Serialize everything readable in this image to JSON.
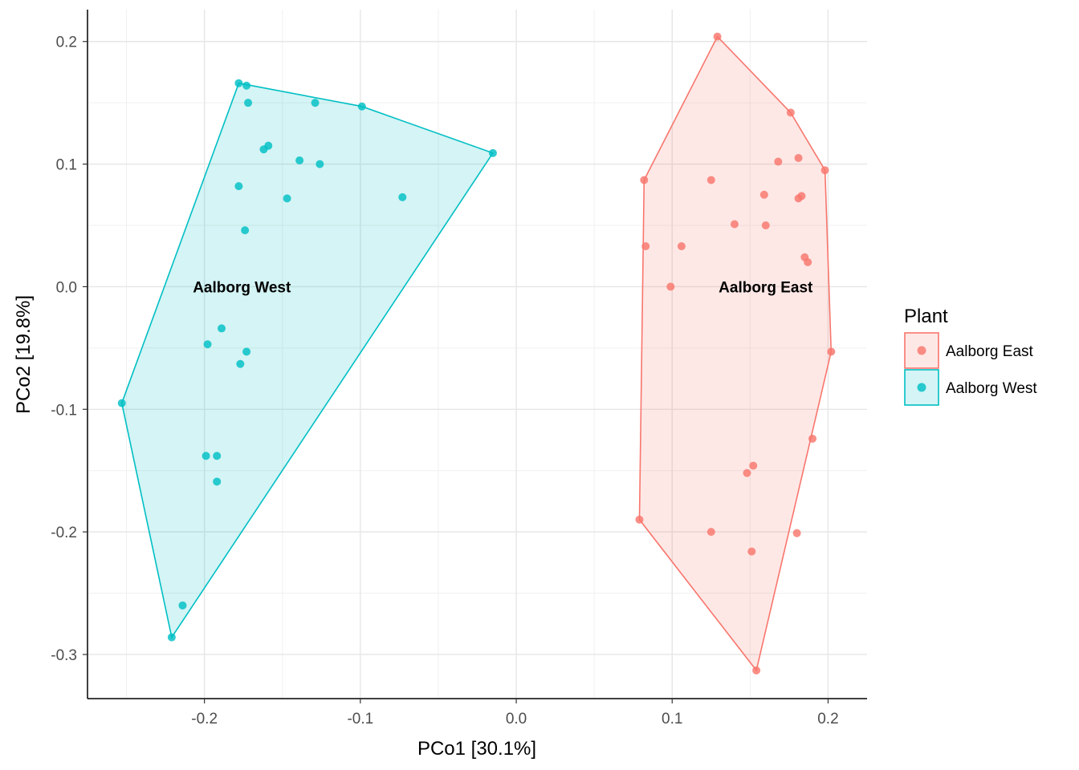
{
  "chart_data": {
    "type": "scatter",
    "xlabel": "PCo1 [30.1%]",
    "ylabel": "PCo2 [19.8%]",
    "xlim": [
      -0.275,
      0.225
    ],
    "ylim": [
      -0.336,
      0.226
    ],
    "x_ticks": [
      -0.2,
      -0.1,
      0.0,
      0.1,
      0.2
    ],
    "x_tick_labels": [
      "-0.2",
      "-0.1",
      "0.0",
      "0.1",
      "0.2"
    ],
    "y_ticks": [
      0.2,
      0.1,
      0.0,
      -0.1,
      -0.2,
      -0.3
    ],
    "y_tick_labels": [
      "0.2",
      "0.1",
      "0.0",
      "-0.1",
      "-0.2",
      "-0.3"
    ],
    "grid": true,
    "hulls": true,
    "legend": {
      "title": "Plant",
      "position": "right",
      "entries": [
        "Aalborg East",
        "Aalborg West"
      ]
    },
    "series": [
      {
        "name": "Aalborg East",
        "color": "#F8766D",
        "label_position": [
          0.16,
          0.0
        ],
        "points": [
          [
            0.129,
            0.204
          ],
          [
            0.176,
            0.142
          ],
          [
            0.168,
            0.102
          ],
          [
            0.181,
            0.105
          ],
          [
            0.198,
            0.095
          ],
          [
            0.082,
            0.087
          ],
          [
            0.125,
            0.087
          ],
          [
            0.159,
            0.075
          ],
          [
            0.183,
            0.074
          ],
          [
            0.181,
            0.072
          ],
          [
            0.14,
            0.051
          ],
          [
            0.16,
            0.05
          ],
          [
            0.083,
            0.033
          ],
          [
            0.106,
            0.033
          ],
          [
            0.185,
            0.024
          ],
          [
            0.187,
            0.02
          ],
          [
            0.099,
            0.0
          ],
          [
            0.202,
            -0.053
          ],
          [
            0.19,
            -0.124
          ],
          [
            0.152,
            -0.146
          ],
          [
            0.148,
            -0.152
          ],
          [
            0.079,
            -0.19
          ],
          [
            0.125,
            -0.2
          ],
          [
            0.18,
            -0.201
          ],
          [
            0.151,
            -0.216
          ],
          [
            0.154,
            -0.313
          ]
        ],
        "hull": [
          [
            0.129,
            0.204
          ],
          [
            0.176,
            0.142
          ],
          [
            0.198,
            0.095
          ],
          [
            0.202,
            -0.053
          ],
          [
            0.154,
            -0.313
          ],
          [
            0.079,
            -0.19
          ],
          [
            0.082,
            0.087
          ]
        ]
      },
      {
        "name": "Aalborg West",
        "color": "#00BFC4",
        "label_position": [
          -0.176,
          0.0
        ],
        "points": [
          [
            -0.178,
            0.166
          ],
          [
            -0.173,
            0.164
          ],
          [
            -0.172,
            0.15
          ],
          [
            -0.129,
            0.15
          ],
          [
            -0.099,
            0.147
          ],
          [
            -0.159,
            0.115
          ],
          [
            -0.162,
            0.112
          ],
          [
            -0.015,
            0.109
          ],
          [
            -0.139,
            0.103
          ],
          [
            -0.126,
            0.1
          ],
          [
            -0.178,
            0.082
          ],
          [
            -0.147,
            0.072
          ],
          [
            -0.073,
            0.073
          ],
          [
            -0.174,
            0.046
          ],
          [
            -0.189,
            -0.034
          ],
          [
            -0.198,
            -0.047
          ],
          [
            -0.173,
            -0.053
          ],
          [
            -0.177,
            -0.063
          ],
          [
            -0.253,
            -0.095
          ],
          [
            -0.199,
            -0.138
          ],
          [
            -0.192,
            -0.138
          ],
          [
            -0.192,
            -0.159
          ],
          [
            -0.214,
            -0.26
          ],
          [
            -0.221,
            -0.286
          ]
        ],
        "hull": [
          [
            -0.178,
            0.166
          ],
          [
            -0.099,
            0.147
          ],
          [
            -0.015,
            0.109
          ],
          [
            -0.221,
            -0.286
          ],
          [
            -0.253,
            -0.095
          ]
        ]
      }
    ]
  }
}
